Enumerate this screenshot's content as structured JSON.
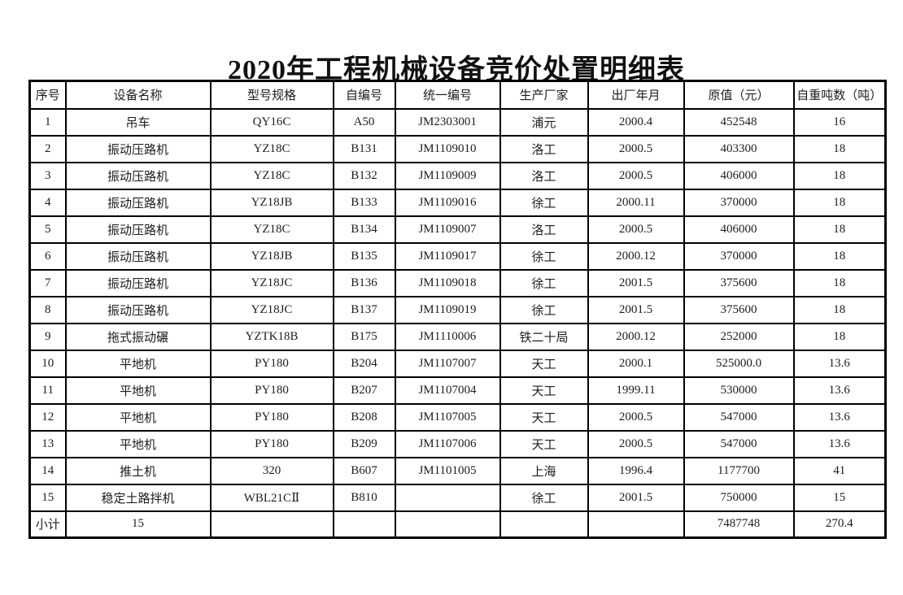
{
  "title": "2020年工程机械设备竞价处置明细表",
  "table": {
    "type": "table",
    "headers": [
      "序号",
      "设备名称",
      "型号规格",
      "自编号",
      "统一编号",
      "生产厂家",
      "出厂年月",
      "原值（元）",
      "自重吨数（吨）"
    ],
    "rows": [
      [
        "1",
        "吊车",
        "QY16C",
        "A50",
        "JM2303001",
        "浦元",
        "2000.4",
        "452548",
        "16"
      ],
      [
        "2",
        "振动压路机",
        "YZ18C",
        "B131",
        "JM1109010",
        "洛工",
        "2000.5",
        "403300",
        "18"
      ],
      [
        "3",
        "振动压路机",
        "YZ18C",
        "B132",
        "JM1109009",
        "洛工",
        "2000.5",
        "406000",
        "18"
      ],
      [
        "4",
        "振动压路机",
        "YZ18JB",
        "B133",
        "JM1109016",
        "徐工",
        "2000.11",
        "370000",
        "18"
      ],
      [
        "5",
        "振动压路机",
        "YZ18C",
        "B134",
        "JM1109007",
        "洛工",
        "2000.5",
        "406000",
        "18"
      ],
      [
        "6",
        "振动压路机",
        "YZ18JB",
        "B135",
        "JM1109017",
        "徐工",
        "2000.12",
        "370000",
        "18"
      ],
      [
        "7",
        "振动压路机",
        "YZ18JC",
        "B136",
        "JM1109018",
        "徐工",
        "2001.5",
        "375600",
        "18"
      ],
      [
        "8",
        "振动压路机",
        "YZ18JC",
        "B137",
        "JM1109019",
        "徐工",
        "2001.5",
        "375600",
        "18"
      ],
      [
        "9",
        "拖式振动碾",
        "YZTK18B",
        "B175",
        "JM1110006",
        "铁二十局",
        "2000.12",
        "252000",
        "18"
      ],
      [
        "10",
        "平地机",
        "PY180",
        "B204",
        "JM1107007",
        "天工",
        "2000.1",
        "525000.0",
        "13.6"
      ],
      [
        "11",
        "平地机",
        "PY180",
        "B207",
        "JM1107004",
        "天工",
        "1999.11",
        "530000",
        "13.6"
      ],
      [
        "12",
        "平地机",
        "PY180",
        "B208",
        "JM1107005",
        "天工",
        "2000.5",
        "547000",
        "13.6"
      ],
      [
        "13",
        "平地机",
        "PY180",
        "B209",
        "JM1107006",
        "天工",
        "2000.5",
        "547000",
        "13.6"
      ],
      [
        "14",
        "推土机",
        "320",
        "B607",
        "JM1101005",
        "上海",
        "1996.4",
        "1177700",
        "41"
      ],
      [
        "15",
        "稳定土路拌机",
        "WBL21CⅡ",
        "B810",
        "",
        "徐工",
        "2001.5",
        "750000",
        "15"
      ],
      [
        "小计",
        "15",
        "",
        "",
        "",
        "",
        "",
        "7487748",
        "270.4"
      ]
    ]
  },
  "colors": {
    "background": "#ffffff",
    "border": "#000000",
    "text": "#1d1d1d",
    "title_text": "#111111"
  }
}
